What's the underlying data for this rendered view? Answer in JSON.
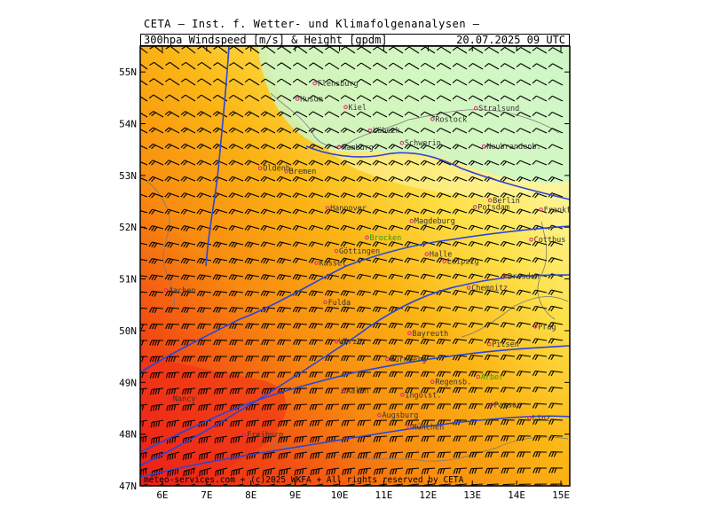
{
  "header": {
    "organization": "CETA — Inst. f. Wetter- und Klimafolgenanalysen —",
    "product": "300hpa Windspeed [m/s] & Height [gpdm]",
    "valid_time": "20.07.2025 09 UTC"
  },
  "map": {
    "lon_range": [
      5.5,
      15.2
    ],
    "lat_range": [
      47,
      55.5
    ],
    "lon_ticks": [
      {
        "value": 6,
        "label": "6E"
      },
      {
        "value": 7,
        "label": "7E"
      },
      {
        "value": 8,
        "label": "8E"
      },
      {
        "value": 9,
        "label": "9E"
      },
      {
        "value": 10,
        "label": "10E"
      },
      {
        "value": 11,
        "label": "11E"
      },
      {
        "value": 12,
        "label": "12E"
      },
      {
        "value": 13,
        "label": "13E"
      },
      {
        "value": 14,
        "label": "14E"
      },
      {
        "value": 15,
        "label": "15E"
      }
    ],
    "lat_ticks": [
      {
        "value": 47,
        "label": "47N"
      },
      {
        "value": 48,
        "label": "48N"
      },
      {
        "value": 49,
        "label": "49N"
      },
      {
        "value": 50,
        "label": "50N"
      },
      {
        "value": 51,
        "label": "51N"
      },
      {
        "value": 52,
        "label": "52N"
      },
      {
        "value": 53,
        "label": "53N"
      },
      {
        "value": 54,
        "label": "54N"
      },
      {
        "value": 55,
        "label": "55N"
      }
    ],
    "cities": [
      {
        "name": "Flensburg",
        "lon": 9.44,
        "lat": 54.78
      },
      {
        "name": "Husum",
        "lon": 9.05,
        "lat": 54.48
      },
      {
        "name": "Kiel",
        "lon": 10.14,
        "lat": 54.32
      },
      {
        "name": "Rostock",
        "lon": 12.1,
        "lat": 54.09
      },
      {
        "name": "Stralsund",
        "lon": 13.08,
        "lat": 54.3
      },
      {
        "name": "Lübeck",
        "lon": 10.69,
        "lat": 53.87
      },
      {
        "name": "Schwerin",
        "lon": 11.41,
        "lat": 53.63
      },
      {
        "name": "Hamburg",
        "lon": 9.99,
        "lat": 53.55
      },
      {
        "name": "Neubrandenb.",
        "lon": 13.26,
        "lat": 53.56
      },
      {
        "name": "Oldenb.",
        "lon": 8.21,
        "lat": 53.14
      },
      {
        "name": "Bremen",
        "lon": 8.8,
        "lat": 53.08
      },
      {
        "name": "Hannover",
        "lon": 9.73,
        "lat": 52.37
      },
      {
        "name": "Magdeburg",
        "lon": 11.63,
        "lat": 52.12
      },
      {
        "name": "Berlin",
        "lon": 13.4,
        "lat": 52.52
      },
      {
        "name": "Potsdam",
        "lon": 13.06,
        "lat": 52.39
      },
      {
        "name": "Frankfurt/O.",
        "lon": 14.55,
        "lat": 52.34
      },
      {
        "name": "Cottbus",
        "lon": 14.33,
        "lat": 51.76
      },
      {
        "name": "Brocken",
        "lon": 10.62,
        "lat": 51.8,
        "highlight": true
      },
      {
        "name": "Göttingen",
        "lon": 9.93,
        "lat": 51.54
      },
      {
        "name": "Kassel",
        "lon": 9.48,
        "lat": 51.31
      },
      {
        "name": "Halle",
        "lon": 11.97,
        "lat": 51.48
      },
      {
        "name": "Leipzig",
        "lon": 12.37,
        "lat": 51.34
      },
      {
        "name": "Dresden",
        "lon": 13.74,
        "lat": 51.05
      },
      {
        "name": "Chemnitz",
        "lon": 12.92,
        "lat": 50.83
      },
      {
        "name": "Aachen",
        "lon": 6.08,
        "lat": 50.78
      },
      {
        "name": "Fulda",
        "lon": 9.68,
        "lat": 50.55
      },
      {
        "name": "Bayreuth",
        "lon": 11.58,
        "lat": 49.95
      },
      {
        "name": "Würzb.",
        "lon": 9.93,
        "lat": 49.79
      },
      {
        "name": "Pilsen",
        "lon": 13.38,
        "lat": 49.74
      },
      {
        "name": "Prag",
        "lon": 14.42,
        "lat": 50.08
      },
      {
        "name": "Nürnberg",
        "lon": 11.08,
        "lat": 49.45
      },
      {
        "name": "Regensb.",
        "lon": 12.1,
        "lat": 49.01
      },
      {
        "name": "Arber",
        "lon": 13.13,
        "lat": 49.11,
        "highlight": true
      },
      {
        "name": "Nancy",
        "lon": 6.18,
        "lat": 48.69
      },
      {
        "name": "Aalen",
        "lon": 10.09,
        "lat": 48.84
      },
      {
        "name": "Ingolst.",
        "lon": 11.42,
        "lat": 48.76
      },
      {
        "name": "Passau",
        "lon": 13.43,
        "lat": 48.57
      },
      {
        "name": "Linz",
        "lon": 14.29,
        "lat": 48.31
      },
      {
        "name": "Augsburg",
        "lon": 10.9,
        "lat": 48.37
      },
      {
        "name": "München",
        "lon": 11.58,
        "lat": 48.14
      },
      {
        "name": "Freiburg",
        "lon": 7.85,
        "lat": 47.99
      }
    ]
  },
  "credit": "meteo-services.com + (c)2025 WKFA + All rights reserved by CETA"
}
